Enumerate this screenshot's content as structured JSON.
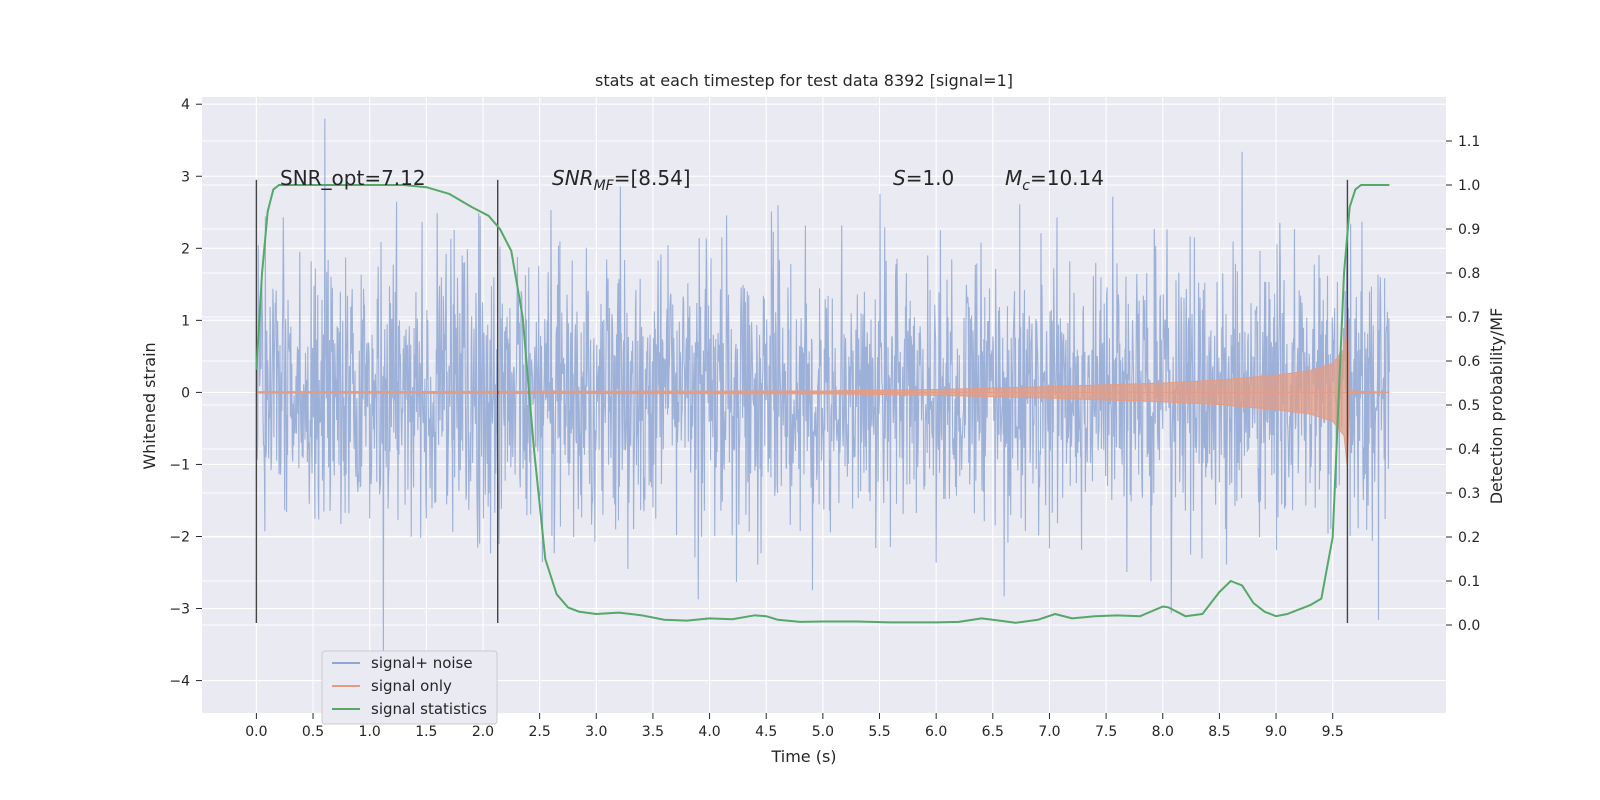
{
  "chart_data": {
    "type": "line",
    "title": "stats at each timestep for test data 8392 [signal=1]",
    "xlabel": "Time (s)",
    "ylabel_left": "Whitened strain",
    "ylabel_right": "Detection probability/MF",
    "xlim": [
      -0.48,
      10.5
    ],
    "ylim_left": [
      -4.45,
      4.1
    ],
    "ylim_right": [
      -0.2,
      1.2
    ],
    "x_ticks": [
      "0.0",
      "0.5",
      "1.0",
      "1.5",
      "2.0",
      "2.5",
      "3.0",
      "3.5",
      "4.0",
      "4.5",
      "5.0",
      "5.5",
      "6.0",
      "6.5",
      "7.0",
      "7.5",
      "8.0",
      "8.5",
      "9.0",
      "9.5"
    ],
    "y_left_ticks": [
      "4",
      "3",
      "2",
      "1",
      "0",
      "−1",
      "−2",
      "−3",
      "−4"
    ],
    "y_right_ticks": [
      "1.1",
      "1.0",
      "0.9",
      "0.8",
      "0.7",
      "0.6",
      "0.5",
      "0.4",
      "0.3",
      "0.2",
      "0.1",
      "0.0"
    ],
    "grid": true,
    "legend_position": "lower-left",
    "annotations": {
      "snr_opt": "SNR_opt=7.12",
      "snr_mf_main": "SNR",
      "snr_mf_sub": "MF",
      "snr_mf_value": "=[8.54]",
      "s_main": "S",
      "s_value": "=1.0",
      "mc_main": "M",
      "mc_sub": "c",
      "mc_value": "=10.14"
    },
    "vertical_markers_x": [
      0.0,
      2.13,
      9.63
    ],
    "series": [
      {
        "name": "signal+ noise",
        "axis": "left",
        "color": "#8fa6d3",
        "description_points": "noise band",
        "envelope": {
          "x": [
            0.0,
            10.0
          ],
          "typical_range": [
            -2.3,
            2.4
          ],
          "extreme_range": [
            -4.05,
            3.8
          ]
        }
      },
      {
        "name": "signal only",
        "axis": "left",
        "color": "#e49c84",
        "chirp": {
          "x": [
            0.0,
            5.0,
            6.0,
            7.0,
            8.0,
            8.5,
            9.0,
            9.3,
            9.5,
            9.6,
            9.63,
            9.65,
            10.0
          ],
          "amplitude": [
            0.01,
            0.02,
            0.04,
            0.08,
            0.13,
            0.17,
            0.24,
            0.3,
            0.4,
            0.6,
            1.05,
            0.02,
            0.0
          ]
        }
      },
      {
        "name": "signal statistics",
        "axis": "right",
        "color": "#55a868",
        "x": [
          0.0,
          0.05,
          0.1,
          0.15,
          0.2,
          0.4,
          0.7,
          1.0,
          1.3,
          1.5,
          1.7,
          1.9,
          2.05,
          2.15,
          2.25,
          2.35,
          2.45,
          2.55,
          2.65,
          2.75,
          2.85,
          3.0,
          3.2,
          3.4,
          3.6,
          3.8,
          4.0,
          4.2,
          4.4,
          4.5,
          4.6,
          4.8,
          5.0,
          5.3,
          5.6,
          5.8,
          6.0,
          6.2,
          6.4,
          6.5,
          6.7,
          6.9,
          7.05,
          7.2,
          7.4,
          7.6,
          7.8,
          8.0,
          8.05,
          8.2,
          8.35,
          8.5,
          8.6,
          8.7,
          8.8,
          8.9,
          9.0,
          9.1,
          9.2,
          9.3,
          9.4,
          9.5,
          9.55,
          9.6,
          9.65,
          9.7,
          9.75,
          9.85,
          10.0
        ],
        "values": [
          0.58,
          0.8,
          0.94,
          0.99,
          1.0,
          1.0,
          1.0,
          1.0,
          1.0,
          0.995,
          0.98,
          0.95,
          0.93,
          0.9,
          0.85,
          0.7,
          0.4,
          0.15,
          0.07,
          0.04,
          0.03,
          0.025,
          0.028,
          0.022,
          0.012,
          0.01,
          0.015,
          0.013,
          0.022,
          0.02,
          0.012,
          0.007,
          0.008,
          0.008,
          0.006,
          0.006,
          0.006,
          0.007,
          0.015,
          0.012,
          0.005,
          0.012,
          0.025,
          0.015,
          0.02,
          0.022,
          0.02,
          0.042,
          0.04,
          0.02,
          0.025,
          0.075,
          0.1,
          0.09,
          0.05,
          0.03,
          0.02,
          0.025,
          0.035,
          0.045,
          0.06,
          0.2,
          0.5,
          0.8,
          0.95,
          0.99,
          1.0,
          1.0,
          1.0
        ]
      }
    ]
  },
  "legend": {
    "items": [
      "signal+ noise",
      "signal only",
      "signal statistics"
    ]
  }
}
